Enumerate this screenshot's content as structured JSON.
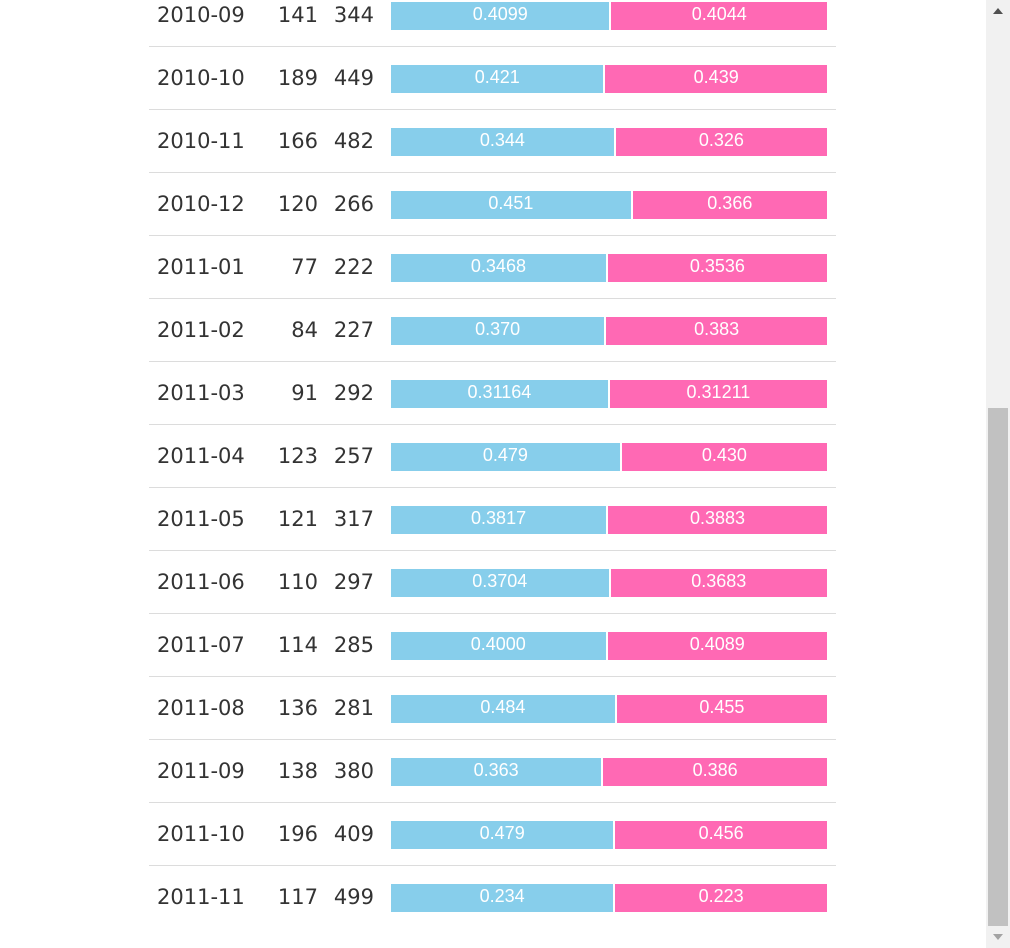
{
  "colors": {
    "series_a": "#87CEEB",
    "series_b": "#FF69B4"
  },
  "rows": [
    {
      "month": "2010-09",
      "n1": "141",
      "n2": "344",
      "a": 0.4099,
      "b": 0.4044,
      "a_label": "0.4099",
      "b_label": "0.4044"
    },
    {
      "month": "2010-10",
      "n1": "189",
      "n2": "449",
      "a": 0.421,
      "b": 0.439,
      "a_label": "0.421",
      "b_label": "0.439"
    },
    {
      "month": "2010-11",
      "n1": "166",
      "n2": "482",
      "a": 0.344,
      "b": 0.326,
      "a_label": "0.344",
      "b_label": "0.326"
    },
    {
      "month": "2010-12",
      "n1": "120",
      "n2": "266",
      "a": 0.451,
      "b": 0.366,
      "a_label": "0.451",
      "b_label": "0.366"
    },
    {
      "month": "2011-01",
      "n1": "77",
      "n2": "222",
      "a": 0.3468,
      "b": 0.3536,
      "a_label": "0.3468",
      "b_label": "0.3536"
    },
    {
      "month": "2011-02",
      "n1": "84",
      "n2": "227",
      "a": 0.37,
      "b": 0.383,
      "a_label": "0.370",
      "b_label": "0.383"
    },
    {
      "month": "2011-03",
      "n1": "91",
      "n2": "292",
      "a": 0.31164,
      "b": 0.31211,
      "a_label": "0.31164",
      "b_label": "0.31211"
    },
    {
      "month": "2011-04",
      "n1": "123",
      "n2": "257",
      "a": 0.479,
      "b": 0.43,
      "a_label": "0.479",
      "b_label": "0.430"
    },
    {
      "month": "2011-05",
      "n1": "121",
      "n2": "317",
      "a": 0.3817,
      "b": 0.3883,
      "a_label": "0.3817",
      "b_label": "0.3883"
    },
    {
      "month": "2011-06",
      "n1": "110",
      "n2": "297",
      "a": 0.3704,
      "b": 0.3683,
      "a_label": "0.3704",
      "b_label": "0.3683"
    },
    {
      "month": "2011-07",
      "n1": "114",
      "n2": "285",
      "a": 0.4,
      "b": 0.4089,
      "a_label": "0.4000",
      "b_label": "0.4089"
    },
    {
      "month": "2011-08",
      "n1": "136",
      "n2": "281",
      "a": 0.484,
      "b": 0.455,
      "a_label": "0.484",
      "b_label": "0.455"
    },
    {
      "month": "2011-09",
      "n1": "138",
      "n2": "380",
      "a": 0.363,
      "b": 0.386,
      "a_label": "0.363",
      "b_label": "0.386"
    },
    {
      "month": "2011-10",
      "n1": "196",
      "n2": "409",
      "a": 0.479,
      "b": 0.456,
      "a_label": "0.479",
      "b_label": "0.456"
    },
    {
      "month": "2011-11",
      "n1": "117",
      "n2": "499",
      "a": 0.234,
      "b": 0.223,
      "a_label": "0.234",
      "b_label": "0.223"
    }
  ],
  "scrollbar": {
    "position_fraction": 0.44
  }
}
